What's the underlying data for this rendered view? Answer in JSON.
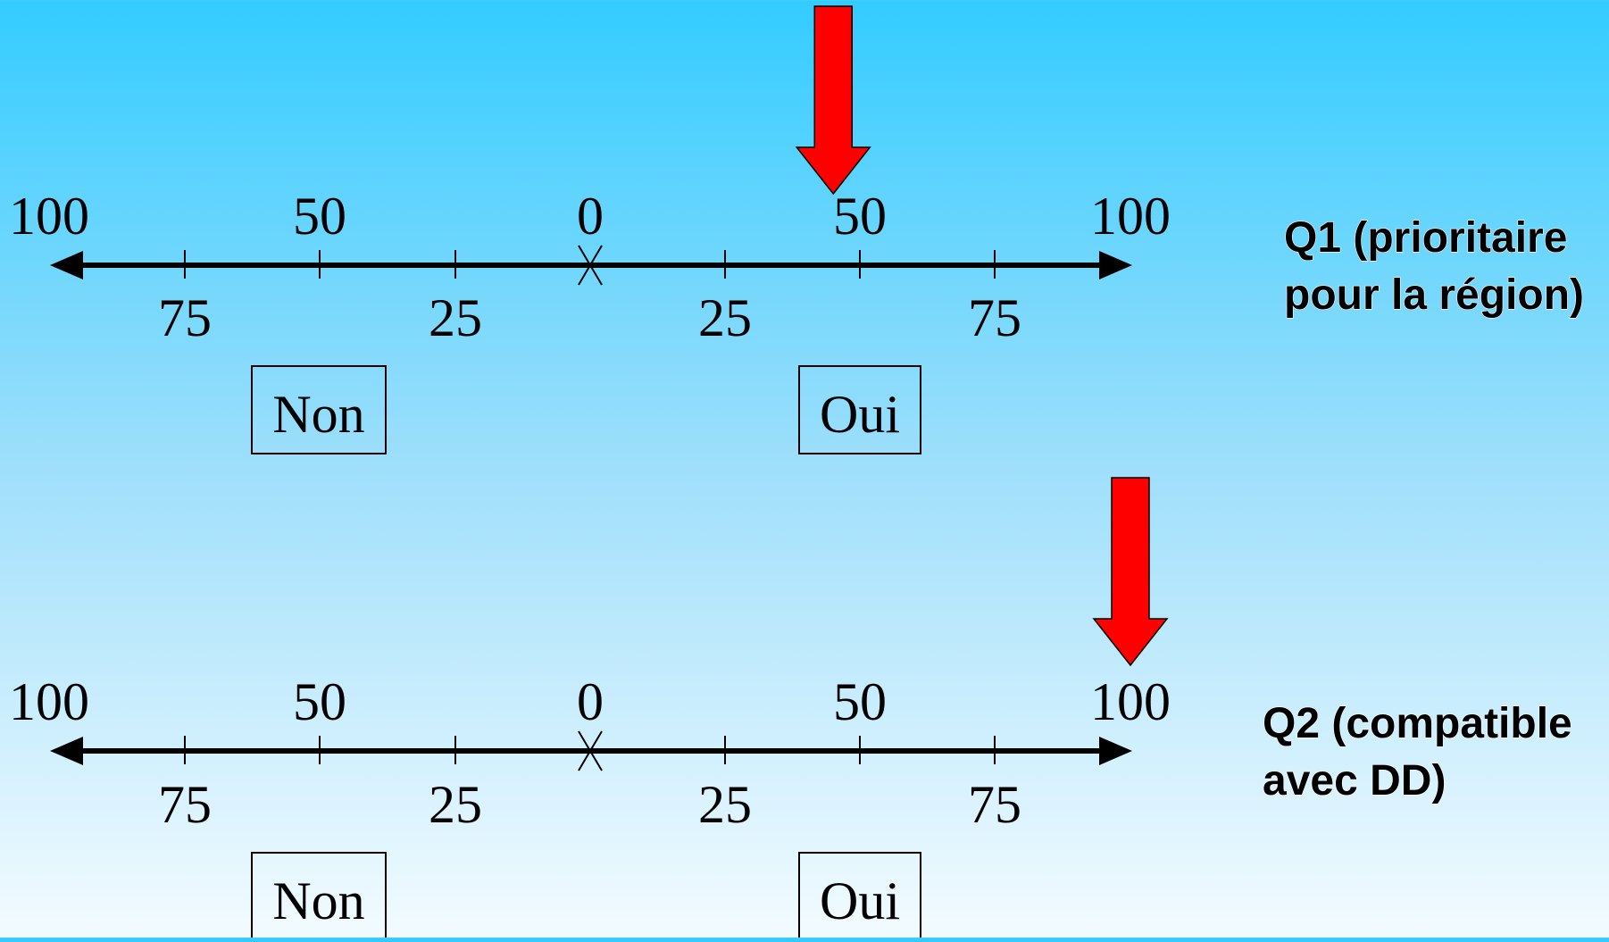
{
  "colors": {
    "marker": "#ff0000",
    "axis": "#000000",
    "background_top": "#33ccff",
    "background_bottom": "#f3fbff"
  },
  "scales": [
    {
      "question_line1": "Q1 (prioritaire",
      "question_line2": "pour la région)",
      "top_labels": [
        "100",
        "50",
        "0",
        "50",
        "100"
      ],
      "bottom_labels": [
        "75",
        "25",
        "25",
        "75"
      ],
      "left_box": "Non",
      "right_box": "Oui",
      "marker_value": 45
    },
    {
      "question_line1": "Q2 (compatible",
      "question_line2": "avec DD)",
      "top_labels": [
        "100",
        "50",
        "0",
        "50",
        "100"
      ],
      "bottom_labels": [
        "75",
        "25",
        "25",
        "75"
      ],
      "left_box": "Non",
      "right_box": "Oui",
      "marker_value": 100
    }
  ]
}
